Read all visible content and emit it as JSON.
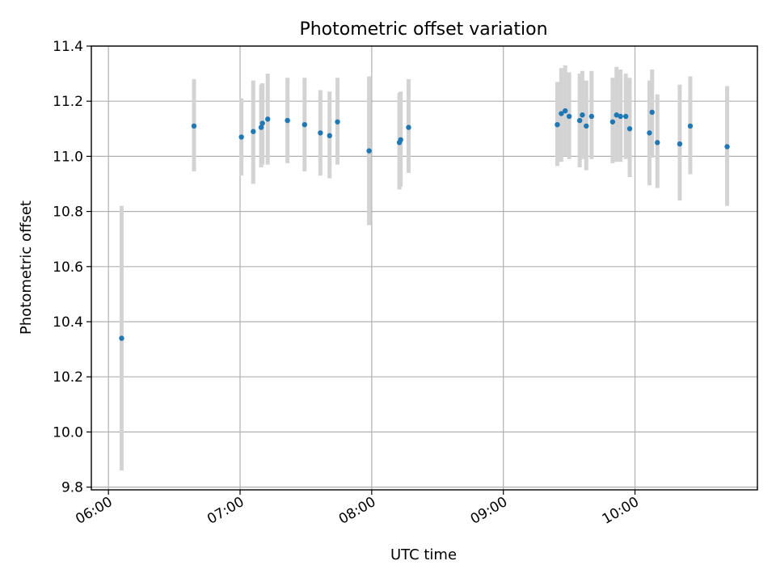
{
  "chart_data": {
    "type": "scatter",
    "title": "Photometric offset variation",
    "xlabel": "UTC time",
    "ylabel": "Photometric offset",
    "x_unit": "hours UTC",
    "xlim": [
      5.87,
      10.93
    ],
    "ylim": [
      9.79,
      11.4
    ],
    "x_ticks": [
      {
        "value": 6,
        "label": "06:00"
      },
      {
        "value": 7,
        "label": "07:00"
      },
      {
        "value": 8,
        "label": "08:00"
      },
      {
        "value": 9,
        "label": "09:00"
      },
      {
        "value": 10,
        "label": "10:00"
      }
    ],
    "y_ticks": [
      {
        "value": 9.8,
        "label": "9.8"
      },
      {
        "value": 10.0,
        "label": "10.0"
      },
      {
        "value": 10.2,
        "label": "10.2"
      },
      {
        "value": 10.4,
        "label": "10.4"
      },
      {
        "value": 10.6,
        "label": "10.6"
      },
      {
        "value": 10.8,
        "label": "10.8"
      },
      {
        "value": 11.0,
        "label": "11.0"
      },
      {
        "value": 11.2,
        "label": "11.2"
      },
      {
        "value": 11.4,
        "label": "11.4"
      }
    ],
    "grid": true,
    "colors": {
      "point": "#1f77b4",
      "error_bar": "#d3d3d3",
      "grid": "#b0b0b0"
    },
    "series": [
      {
        "name": "offset",
        "points": [
          {
            "x": 6.1,
            "y": 10.34,
            "lo": 9.86,
            "hi": 10.82
          },
          {
            "x": 6.65,
            "y": 11.11,
            "lo": 10.945,
            "hi": 11.28
          },
          {
            "x": 7.01,
            "y": 11.07,
            "lo": 10.93,
            "hi": 11.21
          },
          {
            "x": 7.1,
            "y": 11.09,
            "lo": 10.9,
            "hi": 11.275
          },
          {
            "x": 7.16,
            "y": 11.105,
            "lo": 10.96,
            "hi": 11.26
          },
          {
            "x": 7.17,
            "y": 11.12,
            "lo": 10.97,
            "hi": 11.265
          },
          {
            "x": 7.21,
            "y": 11.135,
            "lo": 10.97,
            "hi": 11.3
          },
          {
            "x": 7.36,
            "y": 11.13,
            "lo": 10.975,
            "hi": 11.285
          },
          {
            "x": 7.49,
            "y": 11.115,
            "lo": 10.945,
            "hi": 11.285
          },
          {
            "x": 7.61,
            "y": 11.085,
            "lo": 10.93,
            "hi": 11.24
          },
          {
            "x": 7.68,
            "y": 11.075,
            "lo": 10.92,
            "hi": 11.235
          },
          {
            "x": 7.74,
            "y": 11.125,
            "lo": 10.97,
            "hi": 11.285
          },
          {
            "x": 7.98,
            "y": 11.02,
            "lo": 10.75,
            "hi": 11.29
          },
          {
            "x": 8.21,
            "y": 11.05,
            "lo": 10.88,
            "hi": 11.23
          },
          {
            "x": 8.22,
            "y": 11.06,
            "lo": 10.89,
            "hi": 11.235
          },
          {
            "x": 8.28,
            "y": 11.105,
            "lo": 10.94,
            "hi": 11.28
          },
          {
            "x": 9.41,
            "y": 11.115,
            "lo": 10.965,
            "hi": 11.27
          },
          {
            "x": 9.44,
            "y": 11.155,
            "lo": 10.98,
            "hi": 11.32
          },
          {
            "x": 9.47,
            "y": 11.165,
            "lo": 11.0,
            "hi": 11.33
          },
          {
            "x": 9.5,
            "y": 11.145,
            "lo": 10.99,
            "hi": 11.305
          },
          {
            "x": 9.58,
            "y": 11.13,
            "lo": 10.96,
            "hi": 11.3
          },
          {
            "x": 9.6,
            "y": 11.15,
            "lo": 10.99,
            "hi": 11.31
          },
          {
            "x": 9.63,
            "y": 11.11,
            "lo": 10.95,
            "hi": 11.275
          },
          {
            "x": 9.67,
            "y": 11.145,
            "lo": 10.99,
            "hi": 11.31
          },
          {
            "x": 9.83,
            "y": 11.125,
            "lo": 10.975,
            "hi": 11.285
          },
          {
            "x": 9.86,
            "y": 11.15,
            "lo": 10.98,
            "hi": 11.325
          },
          {
            "x": 9.89,
            "y": 11.145,
            "lo": 10.98,
            "hi": 11.315
          },
          {
            "x": 9.93,
            "y": 11.145,
            "lo": 10.99,
            "hi": 11.3
          },
          {
            "x": 9.96,
            "y": 11.1,
            "lo": 10.925,
            "hi": 11.285
          },
          {
            "x": 10.11,
            "y": 11.085,
            "lo": 10.895,
            "hi": 11.275
          },
          {
            "x": 10.13,
            "y": 11.16,
            "lo": 10.995,
            "hi": 11.315
          },
          {
            "x": 10.17,
            "y": 11.05,
            "lo": 10.885,
            "hi": 11.225
          },
          {
            "x": 10.34,
            "y": 11.045,
            "lo": 10.84,
            "hi": 11.26
          },
          {
            "x": 10.42,
            "y": 11.11,
            "lo": 10.935,
            "hi": 11.29
          },
          {
            "x": 10.7,
            "y": 11.035,
            "lo": 10.82,
            "hi": 11.255
          }
        ]
      }
    ]
  }
}
